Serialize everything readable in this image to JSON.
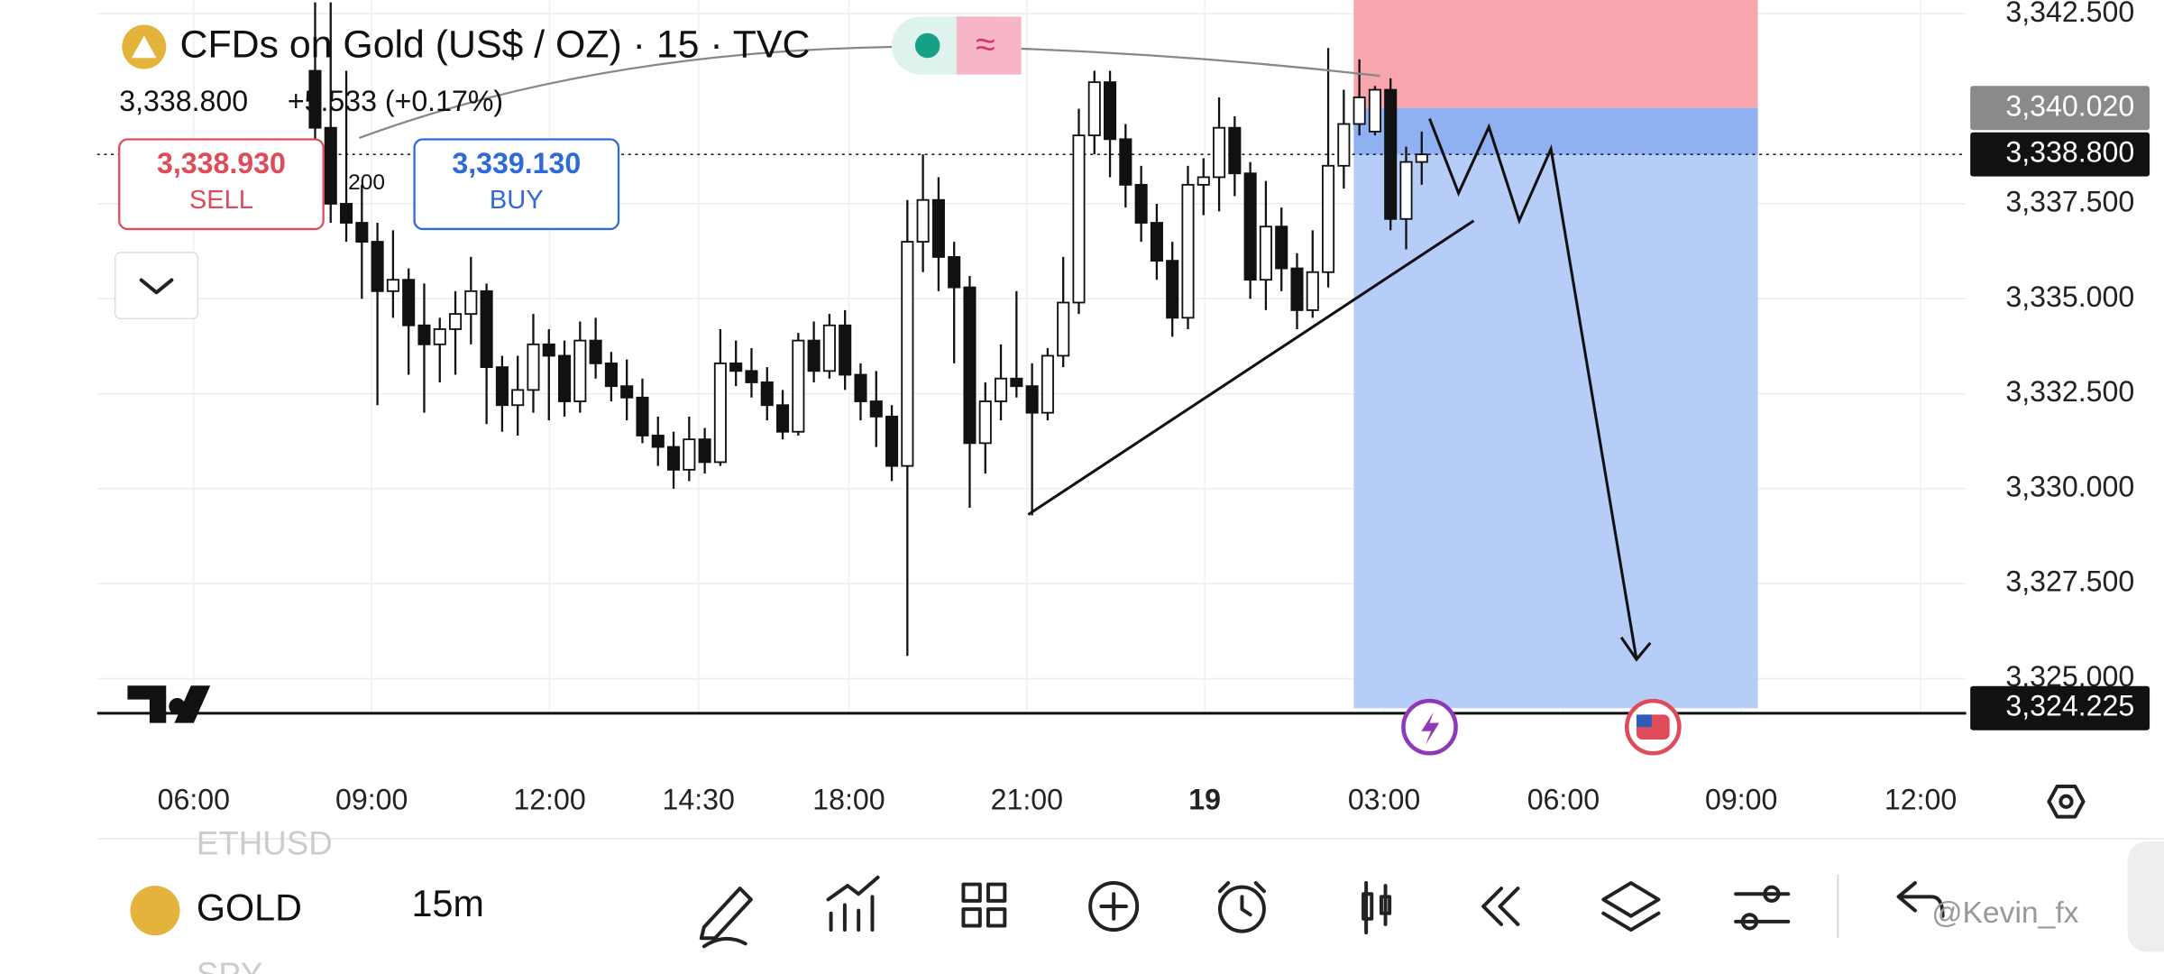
{
  "header": {
    "symbol": "CFDs on Gold (US$ / OZ) · 15 · TVC",
    "price": "3,338.800",
    "change": "+5.533 (+0.17%)"
  },
  "sell": {
    "price": "3,338.930",
    "label": "SELL"
  },
  "buy": {
    "price": "3,339.130",
    "label": "BUY"
  },
  "indicator_label": "200",
  "chart_data": {
    "type": "candlestick",
    "candles": [
      [
        3341,
        3342.8,
        3339,
        3339.5
      ],
      [
        3339.5,
        3342.8,
        3337,
        3337.5
      ],
      [
        3337.5,
        3341,
        3336.5,
        3337
      ],
      [
        3337,
        3338,
        3335,
        3336.5
      ],
      [
        3336.5,
        3337,
        3332.2,
        3335.2
      ],
      [
        3335.2,
        3336.8,
        3334.5,
        3335.5
      ],
      [
        3335.5,
        3335.8,
        3333,
        3334.3
      ],
      [
        3334.3,
        3335.4,
        3332,
        3333.8
      ],
      [
        3333.8,
        3334.5,
        3332.8,
        3334.2
      ],
      [
        3334.2,
        3335.2,
        3333,
        3334.6
      ],
      [
        3334.6,
        3336.1,
        3333.8,
        3335.2
      ],
      [
        3335.2,
        3335.4,
        3331.7,
        3333.2
      ],
      [
        3333.2,
        3333.5,
        3331.5,
        3332.2
      ],
      [
        3332.2,
        3333.5,
        3331.4,
        3332.6
      ],
      [
        3332.6,
        3334.6,
        3332,
        3333.8
      ],
      [
        3333.8,
        3334.2,
        3331.8,
        3333.5
      ],
      [
        3333.5,
        3333.9,
        3331.9,
        3332.3
      ],
      [
        3332.3,
        3334.4,
        3332,
        3333.9
      ],
      [
        3333.9,
        3334.5,
        3332.9,
        3333.3
      ],
      [
        3333.3,
        3333.6,
        3332.3,
        3332.7
      ],
      [
        3332.7,
        3333.4,
        3331.8,
        3332.4
      ],
      [
        3332.4,
        3332.9,
        3331.2,
        3331.4
      ],
      [
        3331.4,
        3331.9,
        3330.6,
        3331.1
      ],
      [
        3331.1,
        3331.5,
        3330,
        3330.5
      ],
      [
        3330.5,
        3331.9,
        3330.2,
        3331.3
      ],
      [
        3331.3,
        3331.6,
        3330.4,
        3330.7
      ],
      [
        3330.7,
        3334.2,
        3330.6,
        3333.3
      ],
      [
        3333.3,
        3333.9,
        3332.7,
        3333.1
      ],
      [
        3333.1,
        3333.7,
        3332.4,
        3332.8
      ],
      [
        3332.8,
        3333.2,
        3331.8,
        3332.2
      ],
      [
        3332.2,
        3332.6,
        3331.3,
        3331.5
      ],
      [
        3331.5,
        3334.1,
        3331.4,
        3333.9
      ],
      [
        3333.9,
        3334.4,
        3332.8,
        3333.1
      ],
      [
        3333.1,
        3334.6,
        3332.9,
        3334.3
      ],
      [
        3334.3,
        3334.7,
        3332.6,
        3333
      ],
      [
        3333,
        3333.3,
        3331.8,
        3332.3
      ],
      [
        3332.3,
        3333.1,
        3331.1,
        3331.9
      ],
      [
        3331.9,
        3332.2,
        3330.2,
        3330.6
      ],
      [
        3330.6,
        3337.6,
        3325.6,
        3336.5
      ],
      [
        3336.5,
        3338.8,
        3335.7,
        3337.6
      ],
      [
        3337.6,
        3338.2,
        3335.2,
        3336.1
      ],
      [
        3336.1,
        3336.5,
        3333.3,
        3335.3
      ],
      [
        3335.3,
        3335.6,
        3329.5,
        3331.2
      ],
      [
        3331.2,
        3332.8,
        3330.4,
        3332.3
      ],
      [
        3332.3,
        3333.8,
        3331.8,
        3332.9
      ],
      [
        3332.9,
        3335.2,
        3332.4,
        3332.7
      ],
      [
        3332.7,
        3333.3,
        3329.3,
        3332
      ],
      [
        3332,
        3333.7,
        3331.8,
        3333.5
      ],
      [
        3333.5,
        3336.1,
        3333.2,
        3334.9
      ],
      [
        3334.9,
        3340,
        3334.6,
        3339.3
      ],
      [
        3339.3,
        3341,
        3338.8,
        3340.7
      ],
      [
        3340.7,
        3341,
        3338.2,
        3339.2
      ],
      [
        3339.2,
        3339.6,
        3337.4,
        3338
      ],
      [
        3338,
        3338.5,
        3336.5,
        3337
      ],
      [
        3337,
        3337.5,
        3335.5,
        3336
      ],
      [
        3336,
        3336.5,
        3334,
        3334.5
      ],
      [
        3334.5,
        3338.5,
        3334.2,
        3338
      ],
      [
        3338,
        3338.7,
        3337.2,
        3338.2
      ],
      [
        3338.2,
        3340.3,
        3337.3,
        3339.5
      ],
      [
        3339.5,
        3339.8,
        3337.7,
        3338.3
      ],
      [
        3338.3,
        3338.6,
        3335,
        3335.5
      ],
      [
        3335.5,
        3338.1,
        3334.7,
        3336.9
      ],
      [
        3336.9,
        3337.4,
        3335.2,
        3335.8
      ],
      [
        3335.8,
        3336.2,
        3334.2,
        3334.7
      ],
      [
        3334.7,
        3336.8,
        3334.5,
        3335.7
      ],
      [
        3335.7,
        3341.6,
        3335.3,
        3338.5
      ],
      [
        3338.5,
        3340.5,
        3337.9,
        3339.6
      ],
      [
        3339.6,
        3341.3,
        3339.3,
        3340.3
      ],
      [
        3339.4,
        3340.6,
        3339.3,
        3340.5
      ],
      [
        3340.5,
        3340.8,
        3336.8,
        3337.1
      ],
      [
        3337.1,
        3339,
        3336.3,
        3338.6
      ],
      [
        3338.6,
        3339.4,
        3338,
        3338.8
      ]
    ],
    "ylim": [
      3324,
      3342.863
    ],
    "yticks": [
      {
        "value": 3342.5,
        "label": "3,342.500"
      },
      {
        "value": 3337.5,
        "label": "3,337.500"
      },
      {
        "value": 3335,
        "label": "3,335.000"
      },
      {
        "value": 3332.5,
        "label": "3,332.500"
      },
      {
        "value": 3330,
        "label": "3,330.000"
      },
      {
        "value": 3327.5,
        "label": "3,327.500"
      },
      {
        "value": 3325,
        "label": "3,325.000"
      }
    ],
    "price_tags": [
      {
        "value": 3340.02,
        "label": "3,340.020",
        "color": "#8a8a8a"
      },
      {
        "value": 3338.8,
        "label": "3,338.800",
        "color": "#111111"
      },
      {
        "value": 3324.225,
        "label": "3,324.225",
        "color": "#111111"
      }
    ],
    "time_labels": [
      "06:00",
      "09:00",
      "12:00",
      "14:30",
      "18:00",
      "21:00",
      "19",
      "03:00",
      "06:00",
      "09:00",
      "12:00"
    ],
    "grid": true
  },
  "toolbar": {
    "symbols": [
      "ETHUSD",
      "GOLD",
      "SPY"
    ],
    "interval": "15m"
  },
  "watermark": "@Kevin_fx"
}
